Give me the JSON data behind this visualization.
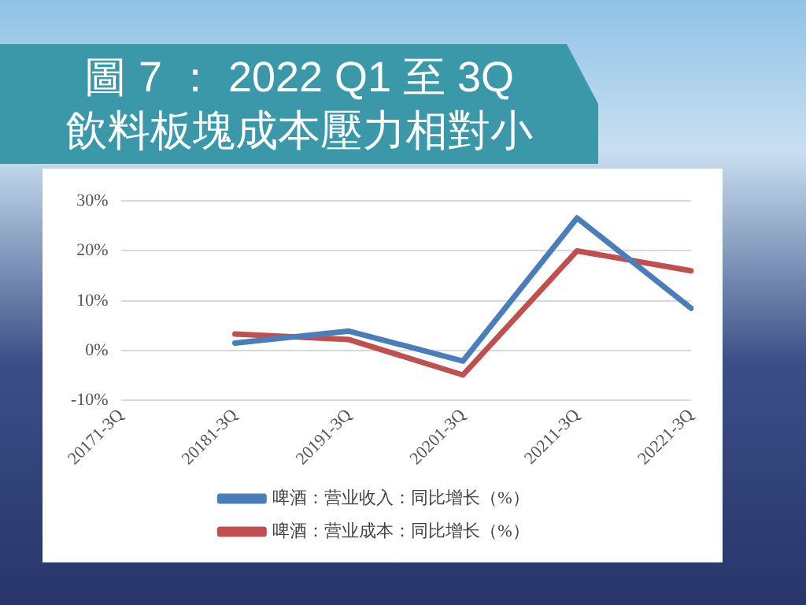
{
  "chart_data": {
    "type": "line",
    "title": "圖 7 ： 2022 Q1 至 3Q\n飲料板塊成本壓力相對小",
    "categories": [
      "20171-3Q",
      "20181-3Q",
      "20191-3Q",
      "20201-3Q",
      "20211-3Q",
      "20221-3Q"
    ],
    "series": [
      {
        "name": "啤酒：营业收入：同比增长（%）",
        "color": "#4a7ebb",
        "values": [
          null,
          1.5,
          3.9,
          -2.1,
          26.6,
          8.5
        ]
      },
      {
        "name": "啤酒：营业成本：同比增长（%）",
        "color": "#c0504d",
        "values": [
          null,
          3.3,
          2.2,
          -4.9,
          20.0,
          16.0
        ]
      }
    ],
    "ylim": [
      -10,
      30
    ],
    "yticks": [
      {
        "value": -10,
        "label": "-10%"
      },
      {
        "value": 0,
        "label": "0%"
      },
      {
        "value": 10,
        "label": "10%"
      },
      {
        "value": 20,
        "label": "20%"
      },
      {
        "value": 30,
        "label": "30%"
      }
    ],
    "grid": "y",
    "legend": "bottom",
    "marker": "none",
    "line_style": "solid"
  }
}
